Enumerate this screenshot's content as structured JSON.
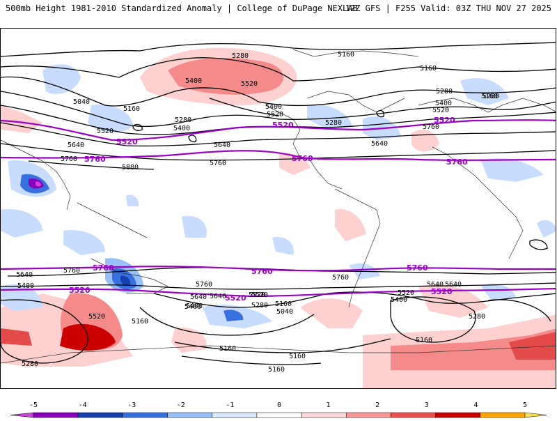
{
  "header": {
    "title_left": "500mb Height 1981-2010 Standardized Anomaly | College of DuPage NEXLAB",
    "title_right": "12Z GFS | F255 Valid: 03Z THU NOV 27 2025"
  },
  "contours": {
    "black_labels": [
      "5280",
      "5160",
      "5160",
      "5400",
      "5520",
      "5040",
      "5160",
      "5280",
      "5400",
      "5520",
      "5640",
      "5760",
      "5880",
      "5520",
      "5400",
      "5280",
      "5640",
      "5760",
      "5280",
      "5160",
      "5280",
      "5400",
      "5520",
      "5640",
      "5760",
      "5640",
      "5400",
      "5520",
      "5760",
      "5640",
      "5760",
      "5640",
      "5400",
      "5520",
      "5520",
      "5280",
      "5160",
      "5040",
      "5160",
      "5160",
      "5160",
      "5280",
      "5160",
      "5520",
      "5400",
      "5640",
      "5760",
      "5640",
      "5520",
      "5400",
      "5280",
      "5160"
    ],
    "purple_labels": [
      "5520",
      "5520",
      "5520",
      "5760",
      "5760",
      "5760",
      "5760",
      "5760",
      "5760",
      "5520",
      "5520",
      "5520"
    ]
  },
  "colorbar": {
    "ticks": [
      "-5",
      "-4",
      "-3",
      "-2",
      "-1",
      "0",
      "1",
      "2",
      "3",
      "4",
      "5"
    ],
    "colors": [
      "#cc44dd",
      "#8800bb",
      "#1540b0",
      "#3870e0",
      "#98c0f8",
      "#d8e8ff",
      "#ffffff",
      "#ffd8d8",
      "#f89898",
      "#e85050",
      "#c80000",
      "#ffa500",
      "#ffe050"
    ]
  }
}
